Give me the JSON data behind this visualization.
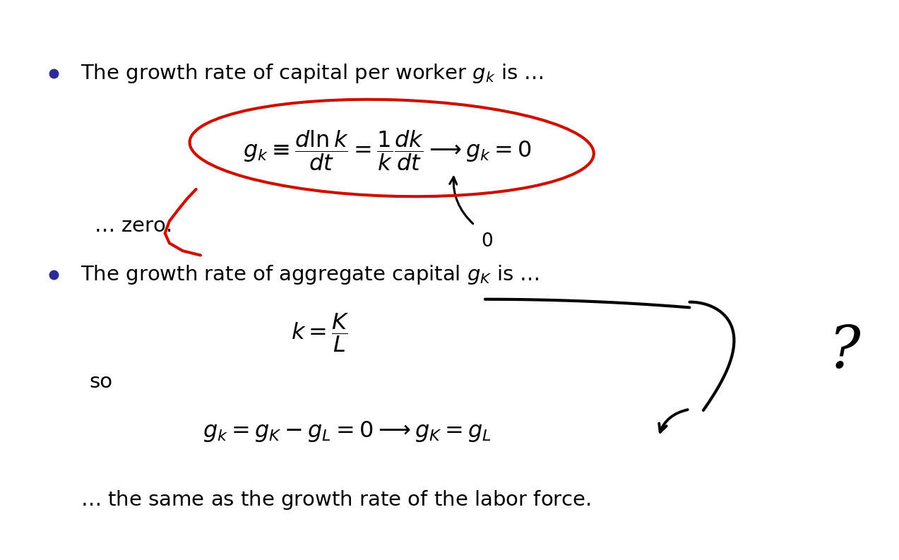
{
  "bg_color": "#ffffff",
  "bullet_color": "#2b2b99",
  "text_color": "#000000",
  "red_color": "#cc1100",
  "figsize": [
    12.73,
    7.93
  ],
  "dpi": 100,
  "line1_text": "The growth rate of capital per worker $g_k$ is $\\ldots$",
  "eq1": "$g_k \\equiv \\dfrac{d\\ln k}{dt} = \\dfrac{1}{k}\\dfrac{dk}{dt} \\longrightarrow g_k = 0$",
  "zero_text": "$\\ldots$ zero.",
  "line2_text": "The growth rate of aggregate capital $g_K$ is $\\ldots$",
  "eq2": "$k = \\dfrac{K}{L}$",
  "so_text": "so",
  "eq3": "$g_k = g_K - g_L = 0 \\longrightarrow g_K = g_L$",
  "final_text": "$\\ldots$ the same as the growth rate of the labor force.",
  "fontsize_main": 21,
  "fontsize_eq": 23
}
